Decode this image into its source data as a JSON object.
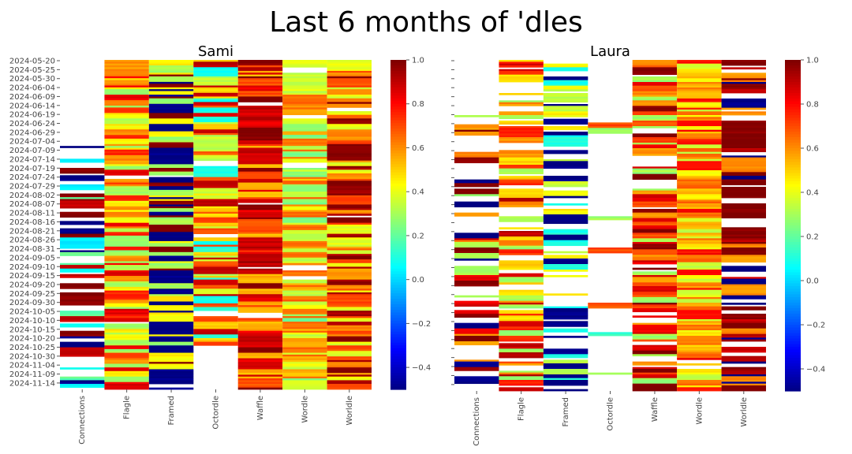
{
  "figure": {
    "title": "Last 6 months of 'dles"
  },
  "chart_data": [
    {
      "type": "heatmap",
      "title": "Sami",
      "x_categories": [
        "Connections",
        "Flagle",
        "Framed",
        "Octordle",
        "Waffle",
        "Wordle",
        "Worldle"
      ],
      "y_tick_labels": [
        "2024-05-20",
        "2024-05-25",
        "2024-05-30",
        "2024-06-04",
        "2024-06-09",
        "2024-06-14",
        "2024-06-19",
        "2024-06-24",
        "2024-06-29",
        "2024-07-04",
        "2024-07-09",
        "2024-07-14",
        "2024-07-19",
        "2024-07-24",
        "2024-07-29",
        "2024-08-02",
        "2024-08-07",
        "2024-08-11",
        "2024-08-16",
        "2024-08-21",
        "2024-08-26",
        "2024-08-31",
        "2024-09-05",
        "2024-09-10",
        "2024-09-15",
        "2024-09-20",
        "2024-09-25",
        "2024-09-30",
        "2024-10-05",
        "2024-10-10",
        "2024-10-15",
        "2024-10-20",
        "2024-10-25",
        "2024-10-30",
        "2024-11-04",
        "2024-11-09",
        "2024-11-14"
      ],
      "n_rows": 180,
      "colorbar": {
        "colormap": "jet",
        "range": [
          -0.5,
          1.0
        ],
        "ticks": [
          -0.4,
          -0.2,
          0.0,
          0.2,
          0.4,
          0.6,
          0.8,
          1.0
        ]
      },
      "column_profiles": [
        {
          "category": "Connections",
          "data_start_row": 46,
          "data_end_row": 180,
          "missing_rate": 0.45,
          "dominant_values": [
            1.0,
            0.9,
            0.2,
            0.05,
            -0.5
          ]
        },
        {
          "category": "Flagle",
          "data_start_row": 0,
          "data_end_row": 180,
          "missing_rate": 0.03,
          "dominant_values": [
            0.85,
            0.75,
            0.6,
            0.45,
            0.3
          ]
        },
        {
          "category": "Framed",
          "data_start_row": 0,
          "data_end_row": 180,
          "missing_rate": 0.08,
          "dominant_values": [
            -0.5,
            -0.5,
            0.3,
            0.45,
            1.0
          ]
        },
        {
          "category": "Octordle",
          "data_start_row": 0,
          "data_end_row": 156,
          "missing_rate": 0.02,
          "dominant_values": [
            0.7,
            0.5,
            0.35,
            0.1,
            0.9
          ]
        },
        {
          "category": "Waffle",
          "data_start_row": 0,
          "data_end_row": 180,
          "missing_rate": 0.02,
          "dominant_values": [
            1.0,
            0.85,
            0.7,
            0.9,
            0.55
          ]
        },
        {
          "category": "Wordle",
          "data_start_row": 0,
          "data_end_row": 180,
          "missing_rate": 0.03,
          "dominant_values": [
            0.4,
            0.35,
            0.55,
            0.25,
            0.65
          ]
        },
        {
          "category": "Worldle",
          "data_start_row": 0,
          "data_end_row": 180,
          "missing_rate": 0.02,
          "dominant_values": [
            0.95,
            1.0,
            0.7,
            0.6,
            0.4
          ]
        }
      ]
    },
    {
      "type": "heatmap",
      "title": "Laura",
      "x_categories": [
        "Connections",
        "Flagle",
        "Framed",
        "Octordle",
        "Waffle",
        "Wordle",
        "Worldle"
      ],
      "y_tick_labels": [],
      "n_rows": 180,
      "colorbar": {
        "colormap": "jet",
        "range": [
          -0.5,
          1.0
        ],
        "ticks": [
          -0.4,
          -0.2,
          0.0,
          0.2,
          0.4,
          0.6,
          0.8,
          1.0
        ]
      },
      "column_profiles": [
        {
          "category": "Connections",
          "data_start_row": 30,
          "data_end_row": 180,
          "missing_rate": 0.55,
          "dominant_values": [
            1.0,
            0.85,
            -0.5,
            0.3,
            0.6
          ]
        },
        {
          "category": "Flagle",
          "data_start_row": 0,
          "data_end_row": 180,
          "missing_rate": 0.25,
          "dominant_values": [
            0.9,
            0.75,
            0.5,
            0.3,
            0.6
          ]
        },
        {
          "category": "Framed",
          "data_start_row": 0,
          "data_end_row": 180,
          "missing_rate": 0.3,
          "dominant_values": [
            -0.5,
            -0.5,
            0.35,
            0.1,
            0.45
          ]
        },
        {
          "category": "Octordle",
          "data_start_row": 0,
          "data_end_row": 180,
          "missing_rate": 0.94,
          "dominant_values": [
            0.7,
            0.3,
            0.15
          ]
        },
        {
          "category": "Waffle",
          "data_start_row": 0,
          "data_end_row": 180,
          "missing_rate": 0.2,
          "dominant_values": [
            1.0,
            0.85,
            0.7,
            0.3,
            0.6
          ]
        },
        {
          "category": "Wordle",
          "data_start_row": 0,
          "data_end_row": 180,
          "missing_rate": 0.05,
          "dominant_values": [
            0.45,
            0.55,
            0.65,
            0.35,
            0.8
          ]
        },
        {
          "category": "Worldle",
          "data_start_row": 0,
          "data_end_row": 180,
          "missing_rate": 0.2,
          "dominant_values": [
            1.0,
            1.0,
            0.9,
            -0.5,
            0.6
          ]
        }
      ]
    }
  ],
  "colors": {
    "text": "#000000",
    "tick": "#444444",
    "missing": "#ffffff"
  }
}
